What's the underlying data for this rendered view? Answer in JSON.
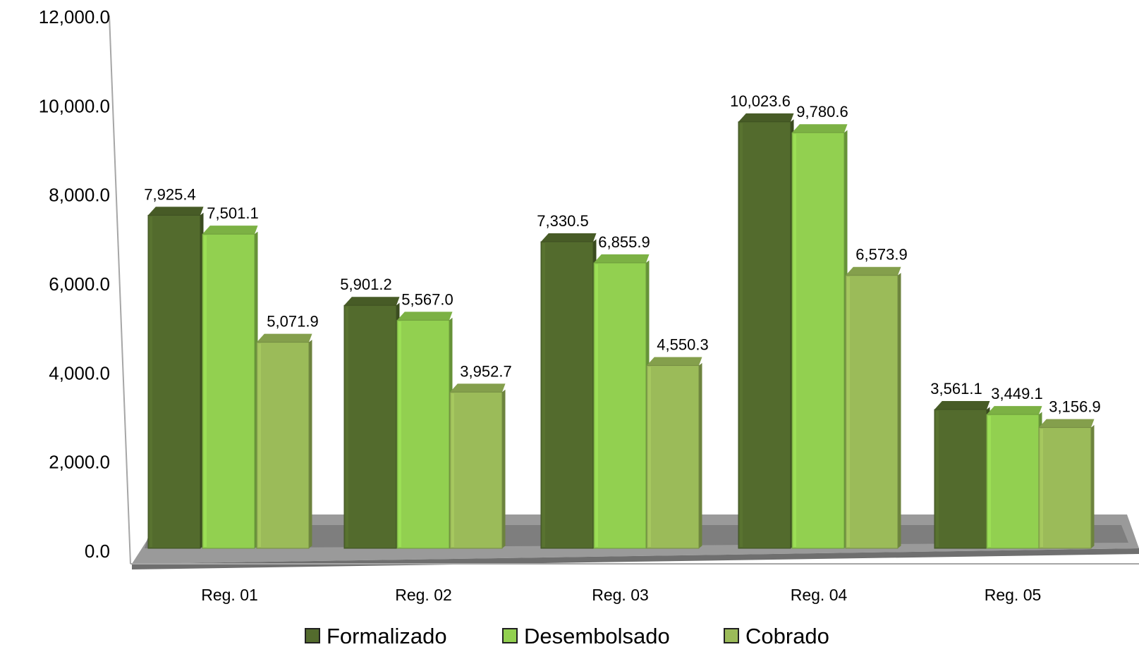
{
  "chart_data": {
    "type": "bar",
    "title": "",
    "xlabel": "",
    "ylabel": "",
    "categories": [
      "Reg. 01",
      "Reg. 02",
      "Reg. 03",
      "Reg. 04",
      "Reg. 05"
    ],
    "series": [
      {
        "name": "Formalizado",
        "color": "#536b2d",
        "values": [
          7925.4,
          5901.2,
          7330.5,
          10023.6,
          3561.1
        ],
        "labels": [
          "7,925.4",
          "5,901.2",
          "7,330.5",
          "10,023.6",
          "3,561.1"
        ]
      },
      {
        "name": "Desembolsado",
        "color": "#92d050",
        "values": [
          7501.1,
          5567.0,
          6855.9,
          9780.6,
          3449.1
        ],
        "labels": [
          "7,501.1",
          "5,567.0",
          "6,855.9",
          "9,780.6",
          "3,449.1"
        ]
      },
      {
        "name": "Cobrado",
        "color": "#9bbb59",
        "values": [
          5071.9,
          3952.7,
          4550.3,
          6573.9,
          3156.9
        ],
        "labels": [
          "5,071.9",
          "3,952.7",
          "4,550.3",
          "6,573.9",
          "3,156.9"
        ]
      }
    ],
    "ylim": [
      0,
      12000
    ],
    "yticks": [
      0,
      2000,
      4000,
      6000,
      8000,
      10000,
      12000
    ],
    "ytick_labels": [
      "0.0",
      "2,000.0",
      "4,000.0",
      "6,000.0",
      "8,000.0",
      "10,000.0",
      "12,000.0"
    ],
    "grid": false,
    "legend": "bottom",
    "style": "3d-clustered-column"
  }
}
